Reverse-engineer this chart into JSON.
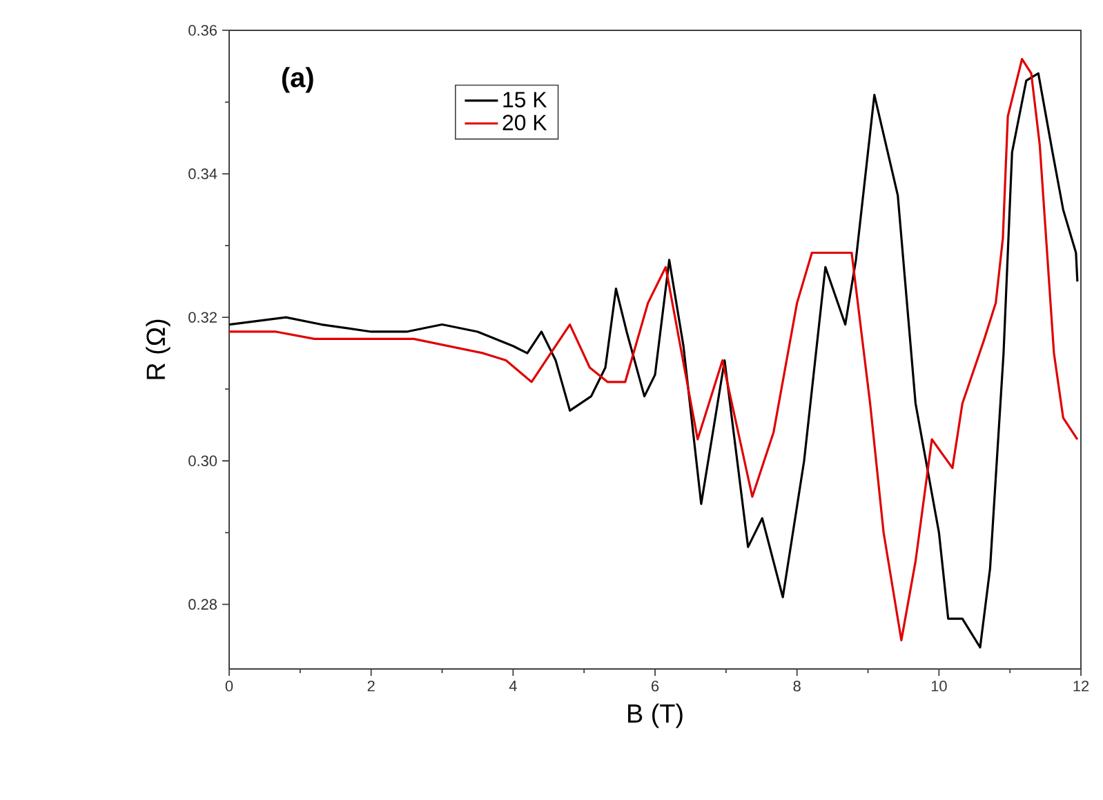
{
  "chart_data": {
    "type": "line",
    "xlabel": "B (T)",
    "ylabel": "R (Ω)",
    "annotations": [
      "(a)"
    ],
    "xlim": [
      0,
      12
    ],
    "ylim": [
      0.271,
      0.36
    ],
    "xticks": [
      0,
      2,
      4,
      6,
      8,
      10,
      12
    ],
    "yticks": [
      0.28,
      {
        "value": 0.3,
        "label": "0.30"
      },
      0.32,
      0.34,
      0.36
    ],
    "legend": "top left",
    "line_style": "solid",
    "marker": "none",
    "series": [
      {
        "name": "15 K",
        "color": "#000000",
        "x": [
          0,
          0.8,
          1.3,
          2,
          2.5,
          3,
          3.5,
          4,
          4.2,
          4.4,
          4.6,
          4.8,
          5.1,
          5.3,
          5.45,
          5.6,
          5.85,
          6.0,
          6.2,
          6.4,
          6.65,
          6.98,
          7.31,
          7.51,
          7.8,
          8.1,
          8.4,
          8.68,
          8.83,
          9.09,
          9.42,
          9.67,
          10.0,
          10.13,
          10.33,
          10.58,
          10.72,
          10.91,
          11.03,
          11.23,
          11.4,
          11.6,
          11.75,
          11.93,
          11.95
        ],
        "values": [
          0.319,
          0.32,
          0.319,
          0.318,
          0.318,
          0.319,
          0.318,
          0.316,
          0.315,
          0.318,
          0.314,
          0.307,
          0.309,
          0.313,
          0.324,
          0.318,
          0.309,
          0.312,
          0.328,
          0.316,
          0.294,
          0.314,
          0.288,
          0.292,
          0.281,
          0.3,
          0.327,
          0.319,
          0.328,
          0.351,
          0.337,
          0.308,
          0.29,
          0.278,
          0.278,
          0.274,
          0.285,
          0.315,
          0.343,
          0.353,
          0.354,
          0.343,
          0.335,
          0.329,
          0.325
        ]
      },
      {
        "name": "20 K",
        "color": "#e00000",
        "x": [
          0,
          0.66,
          1.2,
          2,
          2.6,
          3.58,
          3.9,
          4.26,
          4.8,
          5.08,
          5.33,
          5.58,
          5.9,
          6.15,
          6.3,
          6.6,
          6.95,
          7.37,
          7.67,
          8.0,
          8.21,
          8.44,
          8.77,
          9.03,
          9.22,
          9.47,
          9.67,
          9.9,
          10.19,
          10.33,
          10.64,
          10.8,
          10.9,
          10.97,
          11.17,
          11.3,
          11.42,
          11.62,
          11.75,
          11.95
        ],
        "values": [
          0.318,
          0.318,
          0.317,
          0.317,
          0.317,
          0.315,
          0.314,
          0.311,
          0.319,
          0.313,
          0.311,
          0.311,
          0.322,
          0.327,
          0.319,
          0.303,
          0.314,
          0.295,
          0.304,
          0.322,
          0.329,
          0.329,
          0.329,
          0.308,
          0.29,
          0.275,
          0.286,
          0.303,
          0.299,
          0.308,
          0.317,
          0.322,
          0.331,
          0.348,
          0.356,
          0.354,
          0.344,
          0.315,
          0.306,
          0.303
        ]
      }
    ]
  }
}
